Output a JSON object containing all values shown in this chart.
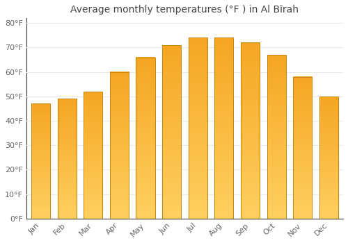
{
  "title": "Average monthly temperatures (°F ) in Al Bīrah",
  "months": [
    "Jan",
    "Feb",
    "Mar",
    "Apr",
    "May",
    "Jun",
    "Jul",
    "Aug",
    "Sep",
    "Oct",
    "Nov",
    "Dec"
  ],
  "values": [
    47,
    49,
    52,
    60,
    66,
    71,
    74,
    74,
    72,
    67,
    58,
    50
  ],
  "bar_color_top": "#F5A623",
  "bar_color_bottom": "#FFD060",
  "ylim": [
    0,
    82
  ],
  "yticks": [
    0,
    10,
    20,
    30,
    40,
    50,
    60,
    70,
    80
  ],
  "ytick_labels": [
    "0°F",
    "10°F",
    "20°F",
    "30°F",
    "40°F",
    "50°F",
    "60°F",
    "70°F",
    "80°F"
  ],
  "bg_color": "#FFFFFF",
  "grid_color": "#E8E8E8",
  "title_fontsize": 10,
  "tick_fontsize": 8,
  "bar_edge_color": "#C8860A",
  "bar_width": 0.72,
  "tick_color": "#666666",
  "title_color": "#444444"
}
